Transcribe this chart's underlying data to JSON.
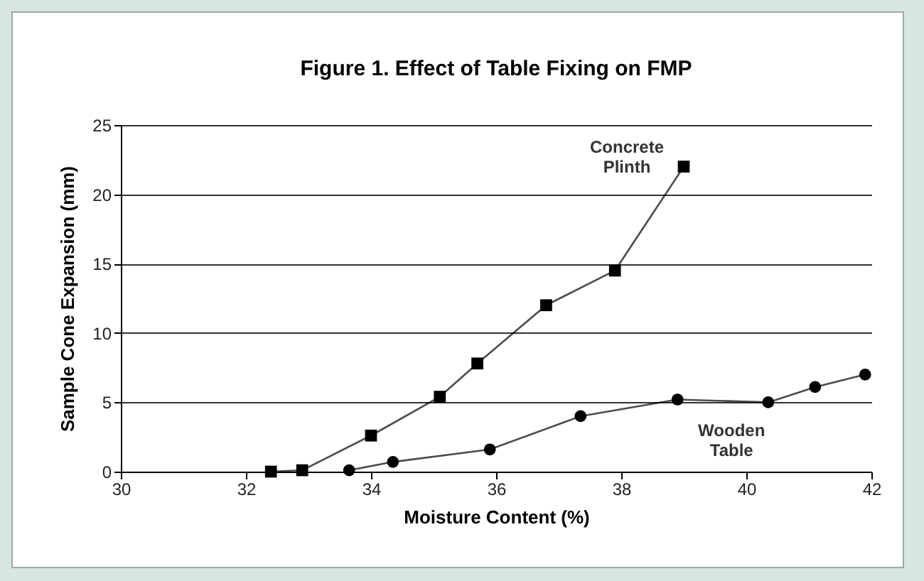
{
  "chart_data": {
    "type": "line",
    "title": "Figure 1. Effect of Table Fixing on FMP",
    "xlabel": "Moisture Content (%)",
    "ylabel": "Sample Cone Expansion (mm)",
    "series": [
      {
        "name": "Concrete Plinth",
        "color": "#000000",
        "marker": "square",
        "x": [
          32.4,
          32.9,
          34.0,
          35.1,
          35.7,
          36.8,
          37.9,
          39.0
        ],
        "values": [
          0,
          0.1,
          2.6,
          5.4,
          7.8,
          12,
          14.5,
          22
        ]
      },
      {
        "name": "Wooden Table",
        "color": "#000000",
        "marker": "circle",
        "x": [
          33.65,
          34.35,
          35.9,
          37.35,
          38.9,
          40.35,
          41.1,
          41.9
        ],
        "values": [
          0.1,
          0.7,
          1.6,
          4,
          5.2,
          5.0,
          6.1,
          7.0
        ]
      }
    ],
    "xlim": [
      30,
      42
    ],
    "xticks": [
      30,
      32,
      34,
      36,
      38,
      40,
      42
    ],
    "ylim": [
      0,
      25
    ],
    "yticks": [
      0,
      5,
      10,
      15,
      20,
      25
    ],
    "grid": "y",
    "legend": false
  }
}
